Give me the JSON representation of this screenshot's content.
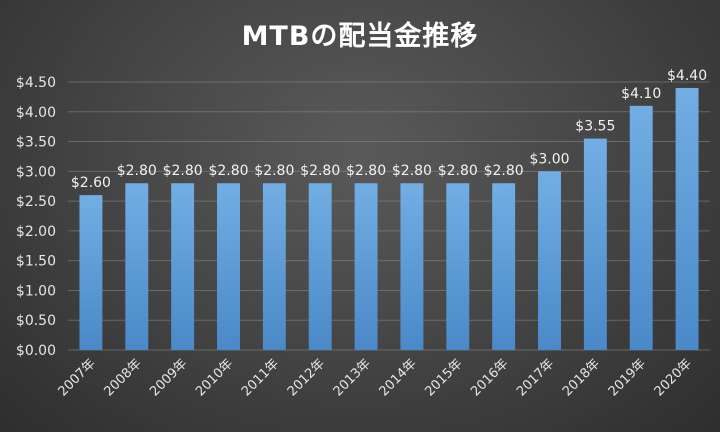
{
  "chart_data": {
    "type": "bar",
    "title": "MTBの配当金推移",
    "categories": [
      "2007年",
      "2008年",
      "2009年",
      "2010年",
      "2011年",
      "2012年",
      "2013年",
      "2014年",
      "2015年",
      "2016年",
      "2017年",
      "2018年",
      "2019年",
      "2020年"
    ],
    "values": [
      2.6,
      2.8,
      2.8,
      2.8,
      2.8,
      2.8,
      2.8,
      2.8,
      2.8,
      2.8,
      3.0,
      3.55,
      4.1,
      4.4
    ],
    "data_labels": [
      "$2.60",
      "$2.80",
      "$2.80",
      "$2.80",
      "$2.80",
      "$2.80",
      "$2.80",
      "$2.80",
      "$2.80",
      "$2.80",
      "$3.00",
      "$3.55",
      "$4.10",
      "$4.40"
    ],
    "y_ticks": [
      "$0.00",
      "$0.50",
      "$1.00",
      "$1.50",
      "$2.00",
      "$2.50",
      "$3.00",
      "$3.50",
      "$4.00",
      "$4.50"
    ],
    "ylim": [
      0,
      4.5
    ],
    "grid": true,
    "bar_color": "#5b9bd5"
  }
}
